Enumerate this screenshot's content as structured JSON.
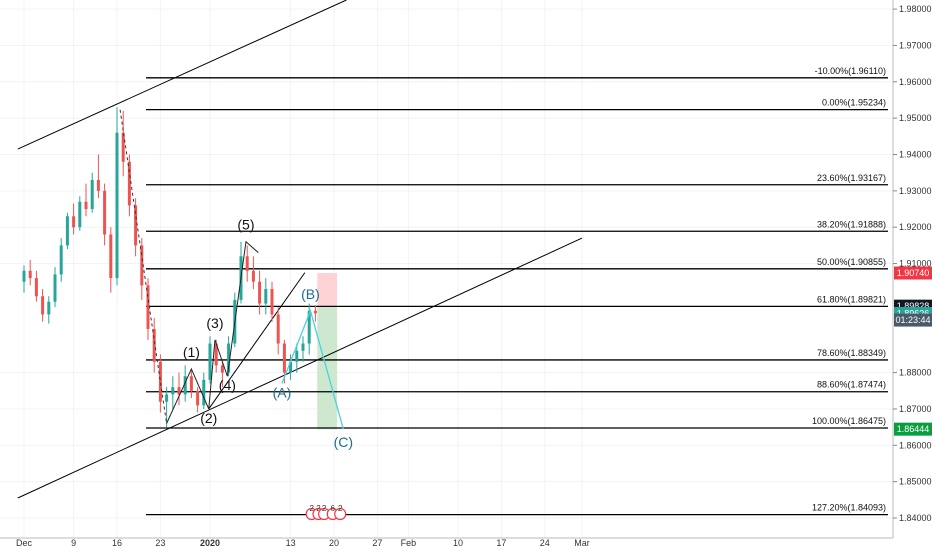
{
  "chart_data": {
    "type": "candlestick",
    "colors": {
      "up": "#26a69a",
      "down": "#ef5350",
      "fib": "#000000",
      "channel": "#000000",
      "projection": "#4dd0e1",
      "target_zone": "#c8e6c9",
      "stop_zone": "#ffcdd2",
      "badge_red": "#f23645",
      "badge_dark": "#131722",
      "badge_green": "#0b9e3f",
      "badge_teal": "#26a69a",
      "badge_slate": "#4a5a6a",
      "wave_corrective": "#1d6e8a"
    },
    "y_range": [
      1.8345,
      1.9825
    ],
    "x_range_days": [
      0,
      101
    ],
    "y_ticks": [
      "1.98000",
      "1.97000",
      "1.96000",
      "1.95000",
      "1.94000",
      "1.93000",
      "1.92000",
      "1.91000",
      "1.88000",
      "1.87000",
      "1.86000",
      "1.85000",
      "1.84000"
    ],
    "x_ticks": [
      {
        "day": 0,
        "label": "Dec"
      },
      {
        "day": 8,
        "label": "9"
      },
      {
        "day": 15,
        "label": "16"
      },
      {
        "day": 22,
        "label": "23"
      },
      {
        "day": 30,
        "label": "2020"
      },
      {
        "day": 43,
        "label": "13"
      },
      {
        "day": 50,
        "label": "20"
      },
      {
        "day": 57,
        "label": "27"
      },
      {
        "day": 62,
        "label": "Feb"
      },
      {
        "day": 70,
        "label": "10"
      },
      {
        "day": 77,
        "label": "17"
      },
      {
        "day": 84,
        "label": "24"
      },
      {
        "day": 90,
        "label": "Mar"
      }
    ],
    "fib_levels": [
      {
        "label": "-10.00%(1.96110)",
        "value": 1.9611
      },
      {
        "label": "0.00%(1.95234)",
        "value": 1.95234
      },
      {
        "label": "23.60%(1.93167)",
        "value": 1.93167
      },
      {
        "label": "38.20%(1.91888)",
        "value": 1.91888
      },
      {
        "label": "50.00%(1.90855)",
        "value": 1.90855
      },
      {
        "label": "61.80%(1.89821)",
        "value": 1.89821
      },
      {
        "label": "78.60%(1.88349)",
        "value": 1.88349
      },
      {
        "label": "88.60%(1.87474)",
        "value": 1.87474
      },
      {
        "label": "100.00%(1.86475)",
        "value": 1.86475
      },
      {
        "label": "127.20%(1.84093)",
        "value": 1.84093
      }
    ],
    "price_badges": [
      {
        "value": 1.9074,
        "label": "1.90740",
        "color": "red"
      },
      {
        "value": 1.89828,
        "label": "1.89828",
        "color": "dark"
      },
      {
        "value": 1.89626,
        "label": "1.89626",
        "color": "teal"
      },
      {
        "value": 1.89445,
        "label": "01:23:44",
        "color": "slate"
      },
      {
        "value": 1.86444,
        "label": "1.86444",
        "color": "green"
      }
    ],
    "channel_lines": [
      {
        "x1": -1,
        "y1": 1.9415,
        "x2": 52,
        "y2": 1.9825
      },
      {
        "x1": -1,
        "y1": 1.8455,
        "x2": 90,
        "y2": 1.917
      }
    ],
    "impulse_line": [
      {
        "x": 29.8,
        "y": 1.87
      },
      {
        "x": 45.3,
        "y": 1.9075
      }
    ],
    "waves": [
      {
        "label": "(1)",
        "x": 27.0,
        "y": 1.881,
        "type": "impulse"
      },
      {
        "label": "(2)",
        "x": 29.8,
        "y": 1.87,
        "type": "impulse"
      },
      {
        "label": "(3)",
        "x": 30.8,
        "y": 1.889,
        "type": "impulse"
      },
      {
        "label": "(4)",
        "x": 32.8,
        "y": 1.879,
        "type": "impulse"
      },
      {
        "label": "(5)",
        "x": 35.8,
        "y": 1.916,
        "type": "impulse"
      },
      {
        "label": "(A)",
        "x": 41.6,
        "y": 1.877,
        "type": "corrective"
      },
      {
        "label": "(B)",
        "x": 46.2,
        "y": 1.897,
        "type": "corrective"
      },
      {
        "label": "(C)",
        "x": 51.5,
        "y": 1.8645,
        "type": "corrective"
      }
    ],
    "wave_path": [
      {
        "x": 15.5,
        "y": 1.9523
      },
      {
        "x": 23.0,
        "y": 1.866
      },
      {
        "x": 27.0,
        "y": 1.881
      },
      {
        "x": 29.8,
        "y": 1.87
      },
      {
        "x": 30.8,
        "y": 1.889
      },
      {
        "x": 32.8,
        "y": 1.879
      },
      {
        "x": 35.8,
        "y": 1.916
      },
      {
        "x": 37.8,
        "y": 1.913
      }
    ],
    "projection_path": [
      {
        "x": 41.6,
        "y": 1.877
      },
      {
        "x": 46.2,
        "y": 1.897
      },
      {
        "x": 51.5,
        "y": 1.8645
      }
    ],
    "position_tool": {
      "x1": 47.3,
      "x2": 50.5,
      "entry": 1.8983,
      "stop": 1.9074,
      "target": 1.8644
    },
    "events": [
      {
        "x": 46.4,
        "label": "2"
      },
      {
        "x": 47.5,
        "label": "2"
      },
      {
        "x": 48.4,
        "label": "2"
      },
      {
        "x": 49.8,
        "label": "6"
      },
      {
        "x": 51.0,
        "label": "2"
      }
    ],
    "candles": [
      [
        1.905,
        1.9095,
        1.902,
        1.908
      ],
      [
        1.908,
        1.911,
        1.904,
        1.906
      ],
      [
        1.906,
        1.908,
        1.8995,
        1.901
      ],
      [
        1.901,
        1.903,
        1.894,
        1.896
      ],
      [
        1.896,
        1.901,
        1.8935,
        1.8995
      ],
      [
        1.8995,
        1.909,
        1.898,
        1.907
      ],
      [
        1.907,
        1.917,
        1.905,
        1.915
      ],
      [
        1.915,
        1.924,
        1.914,
        1.923
      ],
      [
        1.923,
        1.9265,
        1.918,
        1.92
      ],
      [
        1.92,
        1.9285,
        1.919,
        1.927
      ],
      [
        1.927,
        1.932,
        1.923,
        1.925
      ],
      [
        1.925,
        1.935,
        1.924,
        1.933
      ],
      [
        1.933,
        1.94,
        1.928,
        1.93
      ],
      [
        1.93,
        1.932,
        1.915,
        1.918
      ],
      [
        1.918,
        1.92,
        1.902,
        1.906
      ],
      [
        1.906,
        1.953,
        1.904,
        1.946
      ],
      [
        1.946,
        1.952,
        1.934,
        1.938
      ],
      [
        1.938,
        1.94,
        1.923,
        1.926
      ],
      [
        1.926,
        1.928,
        1.912,
        1.915
      ],
      [
        1.915,
        1.917,
        1.9,
        1.904
      ],
      [
        1.904,
        1.906,
        1.889,
        1.892
      ],
      [
        1.892,
        1.895,
        1.88,
        1.883
      ],
      [
        1.883,
        1.885,
        1.869,
        1.872
      ],
      [
        1.872,
        1.876,
        1.865,
        1.874
      ],
      [
        1.874,
        1.879,
        1.87,
        1.876
      ],
      [
        1.876,
        1.88,
        1.871,
        1.874
      ],
      [
        1.874,
        1.882,
        1.872,
        1.879
      ],
      [
        1.879,
        1.881,
        1.873,
        1.875
      ],
      [
        1.875,
        1.876,
        1.869,
        1.871
      ],
      [
        1.871,
        1.88,
        1.87,
        1.878
      ],
      [
        1.878,
        1.89,
        1.877,
        1.888
      ],
      [
        1.888,
        1.889,
        1.88,
        1.882
      ],
      [
        1.882,
        1.883,
        1.876,
        1.88
      ],
      [
        1.88,
        1.89,
        1.879,
        1.888
      ],
      [
        1.888,
        1.902,
        1.887,
        1.9
      ],
      [
        1.9,
        1.916,
        1.899,
        1.912
      ],
      [
        1.912,
        1.915,
        1.905,
        1.908
      ],
      [
        1.908,
        1.912,
        1.903,
        1.905
      ],
      [
        1.905,
        1.908,
        1.896,
        1.899
      ],
      [
        1.899,
        1.906,
        1.896,
        1.903
      ],
      [
        1.903,
        1.905,
        1.894,
        1.896
      ],
      [
        1.896,
        1.898,
        1.885,
        1.888
      ],
      [
        1.888,
        1.889,
        1.877,
        1.88
      ],
      [
        1.88,
        1.885,
        1.878,
        1.883
      ],
      [
        1.883,
        1.888,
        1.88,
        1.886
      ],
      [
        1.886,
        1.89,
        1.883,
        1.888
      ],
      [
        1.888,
        1.899,
        1.885,
        1.897
      ],
      [
        1.897,
        1.8985,
        1.894,
        1.8963
      ]
    ]
  }
}
